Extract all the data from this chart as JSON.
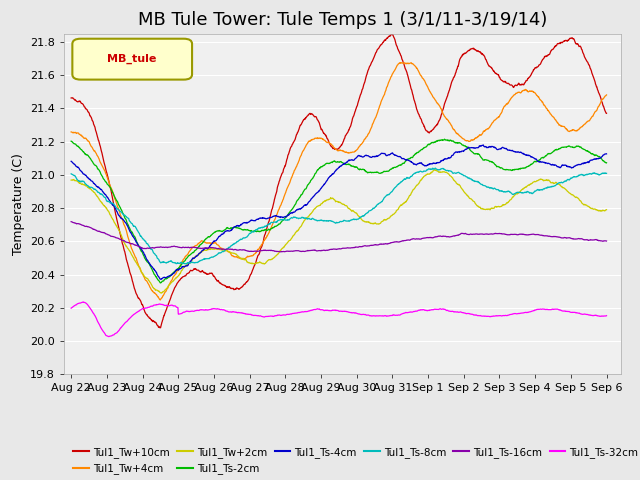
{
  "title": "MB Tule Tower: Tule Temps 1 (3/1/11-3/19/14)",
  "ylabel": "Temperature (C)",
  "ylim": [
    19.8,
    21.85
  ],
  "yticks": [
    19.8,
    20.0,
    20.2,
    20.4,
    20.6,
    20.8,
    21.0,
    21.2,
    21.4,
    21.6,
    21.8
  ],
  "legend_label": "MB_tule",
  "xtick_labels": [
    "Aug 22",
    "Aug 23",
    "Aug 24",
    "Aug 25",
    "Aug 26",
    "Aug 27",
    "Aug 28",
    "Aug 29",
    "Aug 30",
    "Aug 31",
    "Sep 1",
    "Sep 2",
    "Sep 3",
    "Sep 4",
    "Sep 5",
    "Sep 6"
  ],
  "background_color": "#e8e8e8",
  "plot_bg_color": "#f0f0f0",
  "grid_color": "#ffffff",
  "title_fontsize": 13,
  "axis_fontsize": 9,
  "tick_fontsize": 8
}
